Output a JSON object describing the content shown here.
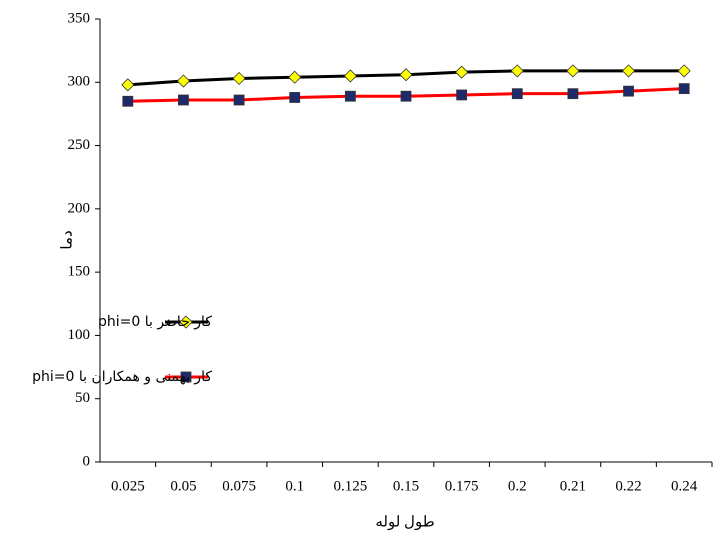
{
  "chart_data": {
    "type": "line",
    "x_label": "طول لوله",
    "y_label": "دما",
    "categories": [
      "0.025",
      "0.05",
      "0.075",
      "0.1",
      "0.125",
      "0.15",
      "0.175",
      "0.2",
      "0.21",
      "0.22",
      "0.24"
    ],
    "series": [
      {
        "name": "کار حاضر با phi=0",
        "color": "#000000",
        "marker_color": "#ffff00",
        "marker": "diamond",
        "values": [
          298,
          301,
          303,
          304,
          305,
          306,
          308,
          309,
          309,
          309,
          309
        ]
      },
      {
        "name": "کار بهمنی و همکاران با phi=0",
        "color": "#ff0000",
        "marker_color": "#1f2a6b",
        "marker": "square",
        "values": [
          285,
          286,
          286,
          288,
          289,
          289,
          290,
          291,
          291,
          293,
          295
        ]
      }
    ],
    "ylim": [
      0,
      350
    ],
    "yticks": [
      0,
      50,
      100,
      150,
      200,
      250,
      300,
      350
    ],
    "grid": false
  }
}
